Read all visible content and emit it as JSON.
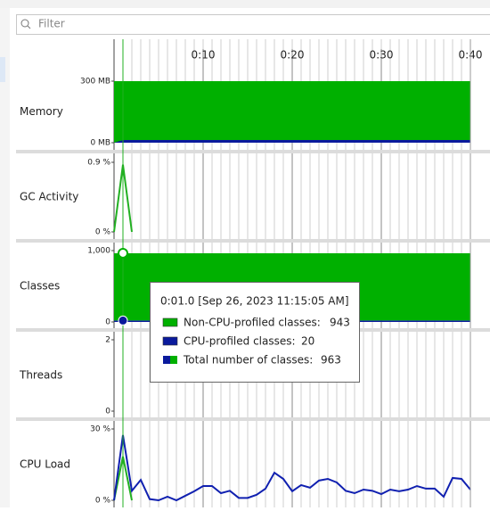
{
  "filter": {
    "placeholder": "Filter"
  },
  "time_axis": {
    "xlim": [
      0,
      40
    ],
    "xticks": [
      {
        "value": 10,
        "label": "0:10"
      },
      {
        "value": 20,
        "label": "0:20"
      },
      {
        "value": 30,
        "label": "0:30"
      },
      {
        "value": 40,
        "label": "0:40"
      }
    ],
    "minor_step": 1
  },
  "cursor": {
    "x": 1
  },
  "panels": [
    {
      "label": "Memory",
      "ylim": [
        0,
        300
      ],
      "yticks": [
        {
          "value": 0,
          "label": "0 MB"
        },
        {
          "value": 300,
          "label": "300 MB"
        }
      ],
      "stacked": false,
      "series": [
        {
          "color": "#00b000",
          "kind": "area",
          "x": [
            0,
            1,
            40
          ],
          "values": [
            300,
            300,
            300
          ]
        },
        {
          "color": "#0a1a9c",
          "kind": "area",
          "x": [
            0,
            1,
            40
          ],
          "values": [
            0,
            13,
            13
          ]
        }
      ]
    },
    {
      "label": "GC Activity",
      "ylim": [
        0,
        0.9
      ],
      "yticks": [
        {
          "value": 0,
          "label": "0 %"
        },
        {
          "value": 0.9,
          "label": "0.9 %"
        }
      ],
      "stacked": false,
      "series": [
        {
          "color": "#22b022",
          "kind": "line",
          "x": [
            0,
            1,
            2
          ],
          "values": [
            0,
            0.87,
            0
          ]
        }
      ]
    },
    {
      "label": "Classes",
      "ylim": [
        0,
        1000
      ],
      "yticks": [
        0,
        {
          "value": 1000,
          "label": "1,000"
        }
      ],
      "stacked": true,
      "series": [
        {
          "color": "#0a1a9c",
          "kind": "area",
          "x": [
            0,
            40
          ],
          "values": [
            20,
            20
          ]
        },
        {
          "color": "#00b000",
          "kind": "area",
          "x": [
            0,
            40
          ],
          "values": [
            943,
            943
          ]
        }
      ]
    },
    {
      "label": "Threads",
      "ylim": [
        0,
        2
      ],
      "yticks": [
        0,
        2
      ],
      "stacked": false,
      "series": []
    },
    {
      "label": "CPU Load",
      "ylim": [
        0,
        30
      ],
      "yticks": [
        {
          "value": 0,
          "label": "0 %"
        },
        {
          "value": 30,
          "label": "30 %"
        }
      ],
      "stacked": false,
      "series": [
        {
          "color": "#22b022",
          "kind": "line",
          "x": [
            0,
            1,
            2
          ],
          "values": [
            0,
            18.4,
            0
          ]
        },
        {
          "color": "#1020b0",
          "kind": "line",
          "x": [
            0,
            1,
            2,
            3,
            4,
            5,
            6,
            7,
            8,
            9,
            10,
            11,
            12,
            13,
            14,
            15,
            16,
            17,
            18,
            19,
            20,
            21,
            22,
            23,
            24,
            25,
            26,
            27,
            28,
            29,
            30,
            31,
            32,
            33,
            34,
            35,
            36,
            37,
            38,
            39,
            40
          ],
          "values": [
            0,
            27.4,
            4,
            8.6,
            0.5,
            0,
            1.5,
            0,
            1.9,
            3.8,
            6,
            6,
            3,
            4,
            1,
            1,
            2.3,
            4.9,
            11.6,
            9,
            3.8,
            6.4,
            5.3,
            8.3,
            9,
            7.5,
            4,
            3,
            4.5,
            4,
            2.6,
            4.5,
            3.8,
            4.5,
            6,
            4.9,
            4.9,
            1.5,
            9.4,
            9,
            4.5
          ]
        }
      ]
    }
  ],
  "tooltip": {
    "title": "0:01.0 [Sep 26, 2023 11:15:05 AM]",
    "rows": [
      {
        "label": "Non-CPU-profiled classes:",
        "value": 943
      },
      {
        "label": "CPU-profiled classes:",
        "value": 20
      },
      {
        "label": "Total number of classes:",
        "value": 963
      }
    ]
  }
}
